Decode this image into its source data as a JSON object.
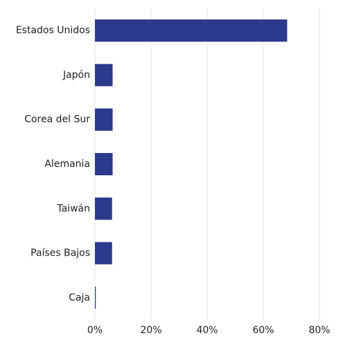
{
  "chart_data": {
    "type": "bar",
    "orientation": "horizontal",
    "categories": [
      "Estados Unidos",
      "Japón",
      "Corea del Sur",
      "Alemania",
      "Taiwán",
      "Países Bajos",
      "Caja"
    ],
    "values": [
      68.5,
      6.3,
      6.3,
      6.3,
      6.1,
      6.1,
      0.3
    ],
    "xlim": [
      0,
      80
    ],
    "xticks": [
      0,
      20,
      40,
      60,
      80
    ],
    "xtick_labels": [
      "0%",
      "20%",
      "40%",
      "60%",
      "80%"
    ],
    "title": "",
    "xlabel": "",
    "ylabel": "",
    "grid": "vertical",
    "legend": "none",
    "bar_color": "#2b3a8c",
    "grid_color": "#e6e6e6"
  }
}
